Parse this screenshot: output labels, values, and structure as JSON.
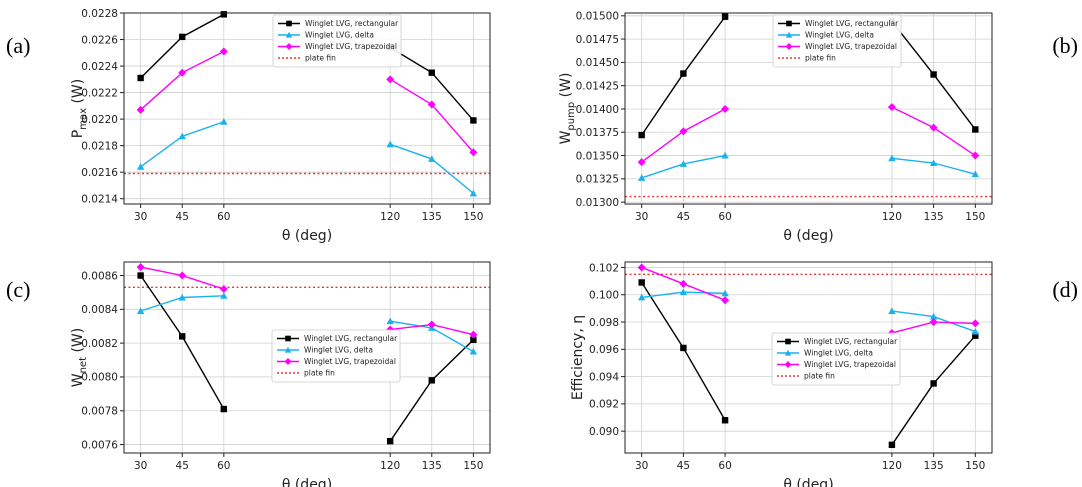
{
  "chart_data": [
    {
      "id": "a",
      "type": "line",
      "panel_label": "(a)",
      "xlabel": "θ (deg)",
      "ylabel": "P",
      "ylabel_sub": "max",
      "ylabel_unit": " (W)",
      "x": [
        30,
        45,
        60,
        120,
        135,
        150
      ],
      "xticks": [
        "30",
        "45",
        "60",
        "120",
        "135",
        "150"
      ],
      "ylim": [
        0.02136,
        0.0228
      ],
      "yticks": [
        "0.0214",
        "0.0216",
        "0.0218",
        "0.0220",
        "0.0222",
        "0.0224",
        "0.0226",
        "0.0228"
      ],
      "grid": true,
      "legend_position": "top-right",
      "series": [
        {
          "name": "Winglet LVG, rectangular",
          "color": "#000000",
          "marker": "square",
          "values": [
            0.02231,
            0.02262,
            0.02279,
            0.02254,
            0.02235,
            0.02199
          ]
        },
        {
          "name": "Winglet LVG, delta",
          "color": "#1ab2ee",
          "marker": "triangle",
          "values": [
            0.02164,
            0.02187,
            0.02198,
            0.02181,
            0.0217,
            0.02144
          ]
        },
        {
          "name": "Winglet LVG, trapezoidal",
          "color": "#ff00ff",
          "marker": "diamond",
          "values": [
            0.02207,
            0.02235,
            0.02251,
            0.0223,
            0.02211,
            0.02175
          ]
        }
      ],
      "reference": {
        "name": "plate fin",
        "color": "#ee3333",
        "value": 0.02159
      }
    },
    {
      "id": "b",
      "type": "line",
      "panel_label": "(b)",
      "xlabel": "θ (deg)",
      "ylabel": "W",
      "ylabel_sub": "pump",
      "ylabel_unit": " (W)",
      "x": [
        30,
        45,
        60,
        120,
        135,
        150
      ],
      "xticks": [
        "30",
        "45",
        "60",
        "120",
        "135",
        "150"
      ],
      "ylim": [
        0.01298,
        0.01503
      ],
      "yticks": [
        "0.01300",
        "0.01325",
        "0.01350",
        "0.01375",
        "0.01400",
        "0.01425",
        "0.01450",
        "0.01475",
        "0.01500"
      ],
      "grid": true,
      "legend_position": "top-right",
      "series": [
        {
          "name": "Winglet LVG, rectangular",
          "color": "#000000",
          "marker": "square",
          "values": [
            0.01372,
            0.01438,
            0.01499,
            0.01494,
            0.01437,
            0.01378
          ]
        },
        {
          "name": "Winglet LVG, delta",
          "color": "#1ab2ee",
          "marker": "triangle",
          "values": [
            0.01326,
            0.01341,
            0.0135,
            0.01347,
            0.01342,
            0.0133
          ]
        },
        {
          "name": "Winglet LVG, trapezoidal",
          "color": "#ff00ff",
          "marker": "diamond",
          "values": [
            0.01343,
            0.01376,
            0.014,
            0.01402,
            0.0138,
            0.0135
          ]
        }
      ],
      "reference": {
        "name": "plate fin",
        "color": "#ee3333",
        "value": 0.01306
      }
    },
    {
      "id": "c",
      "type": "line",
      "panel_label": "(c)",
      "xlabel": "θ (deg)",
      "ylabel": "W",
      "ylabel_sub": "net",
      "ylabel_unit": " (W)",
      "x": [
        30,
        45,
        60,
        120,
        135,
        150
      ],
      "xticks": [
        "30",
        "45",
        "60",
        "120",
        "135",
        "150"
      ],
      "ylim": [
        0.00755,
        0.00868
      ],
      "yticks": [
        "0.0076",
        "0.0078",
        "0.0080",
        "0.0082",
        "0.0084",
        "0.0086"
      ],
      "grid": true,
      "legend_position": "center",
      "series": [
        {
          "name": "Winglet LVG, rectangular",
          "color": "#000000",
          "marker": "square",
          "values": [
            0.0086,
            0.00824,
            0.00781,
            0.00762,
            0.00798,
            0.00822
          ]
        },
        {
          "name": "Winglet LVG, delta",
          "color": "#1ab2ee",
          "marker": "triangle",
          "values": [
            0.00839,
            0.00847,
            0.00848,
            0.00833,
            0.00829,
            0.00815
          ]
        },
        {
          "name": "Winglet LVG, trapezoidal",
          "color": "#ff00ff",
          "marker": "diamond",
          "values": [
            0.00865,
            0.0086,
            0.00852,
            0.00828,
            0.00831,
            0.00825
          ]
        }
      ],
      "reference": {
        "name": "plate fin",
        "color": "#ee3333",
        "value": 0.00853
      }
    },
    {
      "id": "d",
      "type": "line",
      "panel_label": "(d)",
      "xlabel": "θ (deg)",
      "ylabel": "Efficiency, η",
      "ylabel_sub": "",
      "ylabel_unit": "",
      "x": [
        30,
        45,
        60,
        120,
        135,
        150
      ],
      "xticks": [
        "30",
        "45",
        "60",
        "120",
        "135",
        "150"
      ],
      "ylim": [
        0.0884,
        0.1024
      ],
      "yticks": [
        "0.090",
        "0.092",
        "0.094",
        "0.096",
        "0.098",
        "0.100",
        "0.102"
      ],
      "grid": true,
      "legend_position": "center",
      "series": [
        {
          "name": "Winglet LVG, rectangular",
          "color": "#000000",
          "marker": "square",
          "values": [
            0.1009,
            0.0961,
            0.0908,
            0.089,
            0.0935,
            0.097
          ]
        },
        {
          "name": "Winglet LVG, delta",
          "color": "#1ab2ee",
          "marker": "triangle",
          "values": [
            0.0998,
            0.1002,
            0.1001,
            0.0988,
            0.0984,
            0.0973
          ]
        },
        {
          "name": "Winglet LVG, trapezoidal",
          "color": "#ff00ff",
          "marker": "diamond",
          "values": [
            0.102,
            0.1008,
            0.0996,
            0.0972,
            0.098,
            0.0979
          ]
        }
      ],
      "reference": {
        "name": "plate fin",
        "color": "#ee3333",
        "value": 0.1015
      }
    }
  ]
}
